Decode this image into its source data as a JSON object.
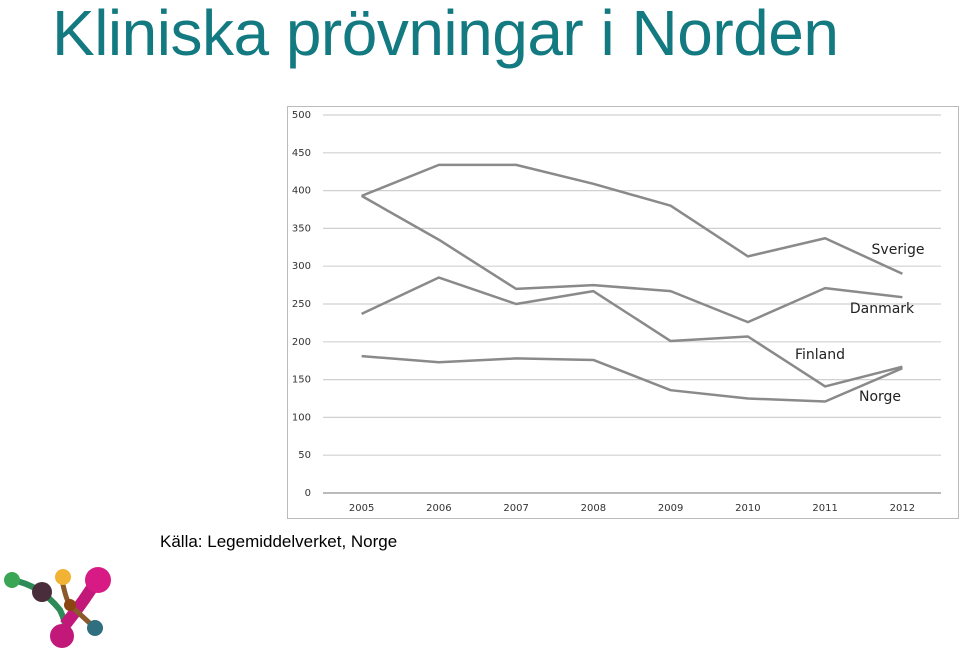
{
  "title": "Kliniska prövningar i Norden",
  "source": "Källa: Legemiddelverket, Norge",
  "chart_data": {
    "type": "line",
    "categories": [
      "2005",
      "2006",
      "2007",
      "2008",
      "2009",
      "2010",
      "2011",
      "2012"
    ],
    "series": [
      {
        "name": "Sverige",
        "color": "#8a8a8a",
        "values": [
          393,
          434,
          434,
          409,
          380,
          313,
          337,
          290
        ]
      },
      {
        "name": "Danmark",
        "color": "#8a8a8a",
        "values": [
          393,
          335,
          270,
          275,
          267,
          226,
          271,
          259
        ]
      },
      {
        "name": "Finland",
        "color": "#8a8a8a",
        "values": [
          237,
          285,
          250,
          267,
          201,
          207,
          141,
          167
        ]
      },
      {
        "name": "Norge",
        "color": "#8a8a8a",
        "values": [
          181,
          173,
          178,
          176,
          136,
          125,
          121,
          165
        ]
      }
    ],
    "ylim": [
      0,
      500
    ],
    "yticks": [
      0,
      50,
      100,
      150,
      200,
      250,
      300,
      350,
      400,
      450,
      500
    ],
    "grid": true
  }
}
